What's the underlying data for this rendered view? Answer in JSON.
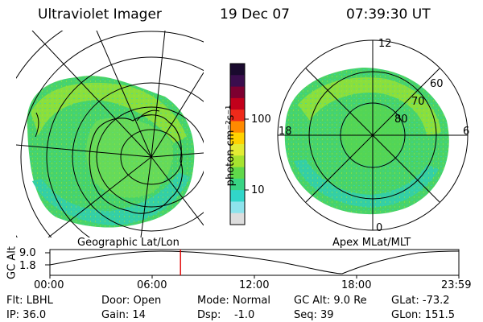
{
  "header": {
    "title": "Ultraviolet Imager",
    "date": "19 Dec 07",
    "time": "07:39:30 UT"
  },
  "left_panel": {
    "caption": "Geographic Lat/Lon"
  },
  "right_panel": {
    "caption": "Apex MLat/MLT",
    "mlt_labels": [
      "12",
      "18",
      "6",
      "0"
    ],
    "lat_labels": [
      "60",
      "70",
      "80"
    ]
  },
  "colorbar": {
    "unit_label": "photon cm⁻²s⁻¹",
    "ticks": [
      "100",
      "10"
    ],
    "colors": [
      "#1a0a2e",
      "#3a0d4d",
      "#7d0030",
      "#c2001b",
      "#ee2a1a",
      "#ff8a00",
      "#ffd200",
      "#e3ec33",
      "#a6e32f",
      "#60d84a",
      "#38d483",
      "#31d6c9",
      "#8ee3ec",
      "#dddddd"
    ]
  },
  "altitude_plot": {
    "ylabel": "GC Alt",
    "yticks": [
      "9.0",
      "1.8"
    ],
    "xticks": [
      "00:00",
      "06:00",
      "12:00",
      "18:00",
      "23:59"
    ],
    "current_time": "07:39:30",
    "marker_color": "#e00000"
  },
  "info": {
    "flt": "Flt: LBHL",
    "ip": "IP: 36.0",
    "door": "Door: Open",
    "gain": "Gain: 14",
    "mode": "Mode: Normal",
    "dsp": "Dsp:    -1.0",
    "gcalt": "GC Alt: 9.0 Re",
    "seq": "Seq: 39",
    "glat": "GLat: -73.2",
    "glon": "GLon: 151.5"
  }
}
